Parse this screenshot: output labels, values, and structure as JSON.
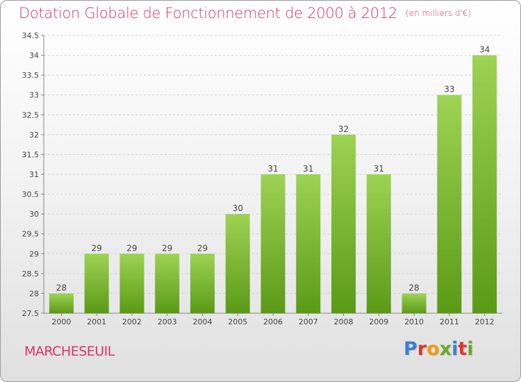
{
  "header": {
    "title": "Dotation Globale de Fonctionnement de 2000 à 2012",
    "unit_note": "(en milliers d'€)"
  },
  "footer": {
    "commune": "MARCHESEUIL",
    "logo_text": "Proxiti",
    "logo_colors": [
      "#3b7fd4",
      "#e0352b",
      "#f29a14",
      "#6aab2a",
      "#3b7fd4",
      "#e0352b",
      "#6aab2a"
    ]
  },
  "chart_data": {
    "type": "bar",
    "categories": [
      "2000",
      "2001",
      "2002",
      "2003",
      "2004",
      "2005",
      "2006",
      "2007",
      "2008",
      "2009",
      "2010",
      "2011",
      "2012"
    ],
    "values": [
      28,
      29,
      29,
      29,
      29,
      30,
      31,
      31,
      32,
      31,
      28,
      33,
      34
    ],
    "data_labels": [
      "28",
      "29",
      "29",
      "29",
      "29",
      "30",
      "31",
      "31",
      "32",
      "31",
      "28",
      "33",
      "34"
    ],
    "yticks": [
      "27.5",
      "28",
      "28.5",
      "29",
      "29.5",
      "30",
      "30.5",
      "31",
      "31.5",
      "32",
      "32.5",
      "33",
      "33.5",
      "34",
      "34.5"
    ],
    "ylim": [
      27.5,
      34.5
    ],
    "grid": true,
    "bar_color_top": "#9ed354",
    "bar_color_bottom": "#5a9a16"
  }
}
